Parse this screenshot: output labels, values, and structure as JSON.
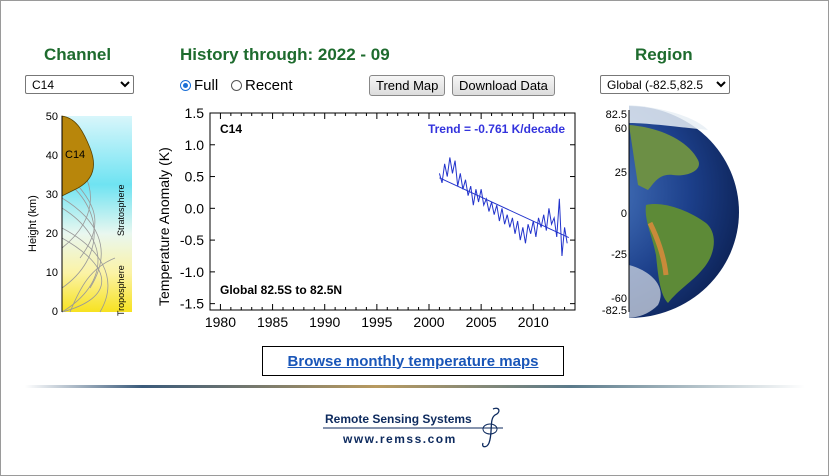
{
  "channel": {
    "header": "Channel",
    "selected": "C14"
  },
  "history": {
    "header": "History through: 2022 - 09"
  },
  "range_options": [
    {
      "label": "Full",
      "checked": true
    },
    {
      "label": "Recent",
      "checked": false
    }
  ],
  "buttons": {
    "trend_map": "Trend Map",
    "download": "Download Data"
  },
  "region": {
    "header": "Region",
    "selected": "Global (-82.5,82.5"
  },
  "height_panel": {
    "ylabel": "Height  (km)",
    "ticks": [
      "50",
      "40",
      "30",
      "20",
      "10",
      "0"
    ],
    "channel_label": "C14",
    "stratosphere": "Stratosphere",
    "troposphere": "Troposphere"
  },
  "chart_data": {
    "type": "line",
    "title": "C14",
    "ylabel": "Temperature Anomaly (K)",
    "trend_label": "Trend = -0.761 K/decade",
    "region_label": "Global  82.5S to  82.5N",
    "xlim": [
      1979,
      2014
    ],
    "ylim": [
      -1.6,
      1.5
    ],
    "x_ticks": [
      "1980",
      "1985",
      "1990",
      "1995",
      "2000",
      "2005",
      "2010"
    ],
    "y_ticks": [
      "1.5",
      "1.0",
      "0.5",
      "0.0",
      "-0.5",
      "-1.0",
      "-1.5"
    ],
    "series_color": "#2233cc",
    "series": [
      {
        "x": [
          2001.0,
          2001.25,
          2001.5,
          2001.75,
          2002.0,
          2002.25,
          2002.5,
          2002.75,
          2003.0,
          2003.25,
          2003.5,
          2003.75,
          2004.0,
          2004.25,
          2004.5,
          2004.75,
          2005.0,
          2005.25,
          2005.5,
          2005.75,
          2006.0,
          2006.25,
          2006.5,
          2006.75,
          2007.0,
          2007.25,
          2007.5,
          2007.75,
          2008.0,
          2008.25,
          2008.5,
          2008.75,
          2009.0,
          2009.25,
          2009.5,
          2009.75,
          2010.0,
          2010.25,
          2010.5,
          2010.75,
          2011.0,
          2011.25,
          2011.5,
          2011.75,
          2012.0,
          2012.25,
          2012.5,
          2012.75,
          2013.0,
          2013.25
        ],
        "y": [
          0.55,
          0.4,
          0.7,
          0.5,
          0.8,
          0.55,
          0.75,
          0.35,
          0.55,
          0.3,
          0.45,
          0.2,
          0.35,
          0.05,
          0.3,
          0.1,
          0.3,
          0.05,
          0.15,
          -0.05,
          0.1,
          -0.1,
          0.05,
          -0.2,
          0.0,
          -0.25,
          -0.1,
          -0.3,
          -0.15,
          -0.4,
          -0.2,
          -0.5,
          -0.3,
          -0.55,
          -0.25,
          -0.4,
          -0.2,
          -0.45,
          -0.15,
          -0.3,
          -0.1,
          -0.35,
          0.0,
          -0.25,
          -0.15,
          -0.45,
          0.15,
          -0.75,
          -0.3,
          -0.55
        ]
      }
    ],
    "trend_line": {
      "x": [
        2001.0,
        2013.4
      ],
      "y": [
        0.48,
        -0.46
      ]
    }
  },
  "globe": {
    "ticks": [
      "82.5",
      "60",
      "25",
      "0",
      "-25",
      "-60",
      "-82.5"
    ]
  },
  "browse_link": "Browse monthly temperature maps",
  "footer": {
    "brand": "Remote Sensing Systems",
    "url": "www.remss.com"
  }
}
